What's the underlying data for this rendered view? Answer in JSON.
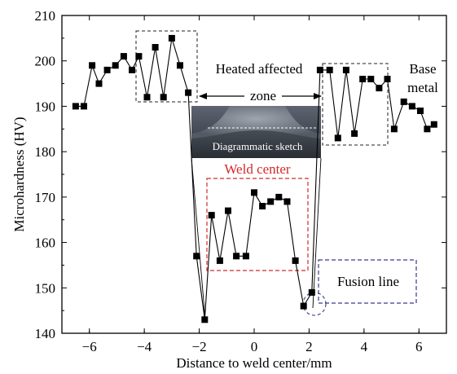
{
  "chart_data": {
    "type": "line",
    "xlabel": "Distance to weld center/mm",
    "ylabel": "Microhardness (HV)",
    "xlim": [
      -7.0,
      7.0
    ],
    "ylim": [
      140,
      210
    ],
    "xticks": [
      -6,
      -4,
      -2,
      0,
      2,
      4,
      6
    ],
    "yticks": [
      140,
      150,
      160,
      170,
      180,
      190,
      200,
      210
    ],
    "xtick_labels": [
      "−6",
      "−4",
      "−2",
      "0",
      "2",
      "4",
      "6"
    ],
    "ytick_labels": [
      "140",
      "150",
      "160",
      "170",
      "180",
      "190",
      "200",
      "210"
    ],
    "series": [
      {
        "x": [
          -6.5,
          -6.2,
          -5.9,
          -5.65,
          -5.35,
          -5.05,
          -4.75,
          -4.45,
          -4.2,
          -3.9,
          -3.6,
          -3.3,
          -3.0,
          -2.7,
          -2.4,
          -2.1,
          -1.8,
          -1.55,
          -1.25,
          -0.95,
          -0.65,
          -0.3,
          0.0,
          0.3,
          0.6,
          0.9,
          1.2,
          1.5,
          1.8,
          2.1,
          2.4,
          2.75,
          3.05,
          3.35,
          3.65,
          3.95,
          4.25,
          4.55,
          4.85,
          5.1,
          5.45,
          5.75,
          6.05,
          6.3,
          6.55
        ],
        "y": [
          190,
          190,
          199,
          195,
          198,
          199,
          201,
          198,
          201,
          192,
          203,
          192,
          205,
          199,
          193,
          157,
          143,
          166,
          156,
          167,
          157,
          157,
          171,
          168,
          169,
          170,
          169,
          156,
          146,
          149,
          198,
          198,
          183,
          198,
          184,
          196,
          196,
          194,
          196,
          185,
          191,
          190,
          189,
          185,
          186
        ]
      }
    ],
    "annotations": {
      "heated_affected": "Heated affected",
      "zone": "zone",
      "base": "Base",
      "metal": "metal",
      "weld_center": "Weld center",
      "fusion_line": "Fusion line",
      "sketch_caption": "Diagrammatic sketch"
    },
    "colors": {
      "line": "#000000",
      "hardness_box": "#222222",
      "weld_box": "#d42a2a",
      "fusion_box": "#3a3a8c"
    }
  }
}
